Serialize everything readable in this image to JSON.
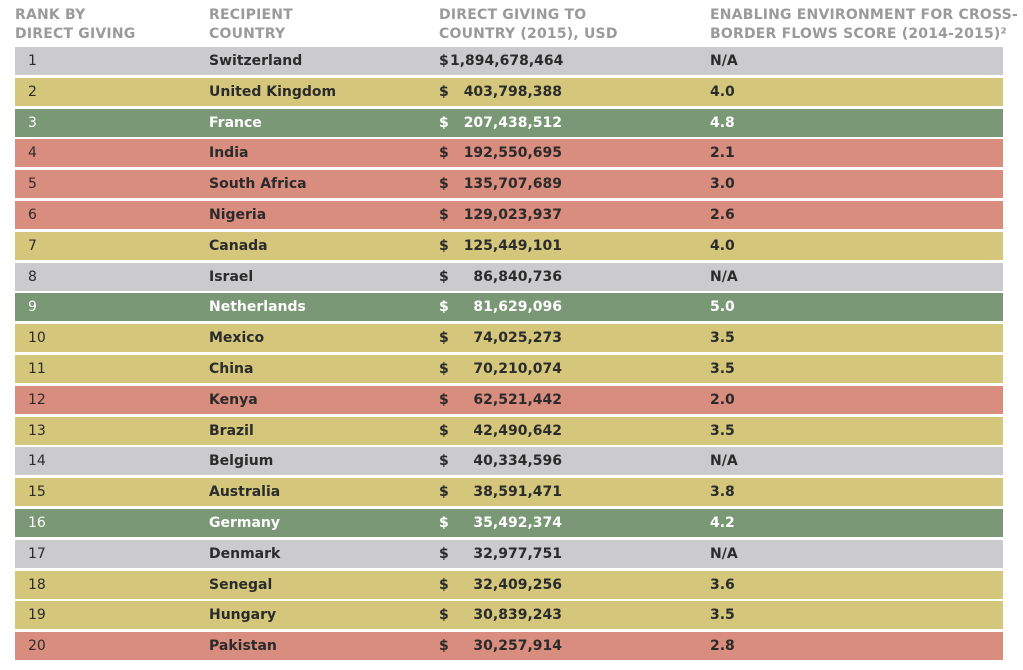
{
  "headers": {
    "rank": "RANK BY\nDIRECT GIVING",
    "country": "RECIPIENT\nCOUNTRY",
    "giving": "DIRECT GIVING TO\nCOUNTRY (2015), USD",
    "score": "ENABLING ENVIRONMENT FOR CROSS-\nBORDER FLOWS SCORE (2014-2015)²"
  },
  "currency_symbol": "$",
  "colors": {
    "grey": "#cbcbcd",
    "yellow": "#d4c77b",
    "green": "#7a9876",
    "red": "#d98d7e"
  },
  "rows": [
    {
      "rank": "1",
      "country": "Switzerland",
      "amount": "1,894,678,464",
      "score": "N/A",
      "color": "grey"
    },
    {
      "rank": "2",
      "country": "United Kingdom",
      "amount": "403,798,388",
      "score": "4.0",
      "color": "yellow"
    },
    {
      "rank": "3",
      "country": "France",
      "amount": "207,438,512",
      "score": "4.8",
      "color": "green"
    },
    {
      "rank": "4",
      "country": "India",
      "amount": "192,550,695",
      "score": "2.1",
      "color": "red"
    },
    {
      "rank": "5",
      "country": "South Africa",
      "amount": "135,707,689",
      "score": "3.0",
      "color": "red"
    },
    {
      "rank": "6",
      "country": "Nigeria",
      "amount": "129,023,937",
      "score": "2.6",
      "color": "red"
    },
    {
      "rank": "7",
      "country": "Canada",
      "amount": "125,449,101",
      "score": "4.0",
      "color": "yellow"
    },
    {
      "rank": "8",
      "country": "Israel",
      "amount": "86,840,736",
      "score": "N/A",
      "color": "grey"
    },
    {
      "rank": "9",
      "country": "Netherlands",
      "amount": "81,629,096",
      "score": "5.0",
      "color": "green"
    },
    {
      "rank": "10",
      "country": "Mexico",
      "amount": "74,025,273",
      "score": "3.5",
      "color": "yellow"
    },
    {
      "rank": "11",
      "country": "China",
      "amount": "70,210,074",
      "score": "3.5",
      "color": "yellow"
    },
    {
      "rank": "12",
      "country": "Kenya",
      "amount": "62,521,442",
      "score": "2.0",
      "color": "red"
    },
    {
      "rank": "13",
      "country": "Brazil",
      "amount": "42,490,642",
      "score": "3.5",
      "color": "yellow"
    },
    {
      "rank": "14",
      "country": "Belgium",
      "amount": "40,334,596",
      "score": "N/A",
      "color": "grey"
    },
    {
      "rank": "15",
      "country": "Australia",
      "amount": "38,591,471",
      "score": "3.8",
      "color": "yellow"
    },
    {
      "rank": "16",
      "country": "Germany",
      "amount": "35,492,374",
      "score": "4.2",
      "color": "green"
    },
    {
      "rank": "17",
      "country": "Denmark",
      "amount": "32,977,751",
      "score": "N/A",
      "color": "grey"
    },
    {
      "rank": "18",
      "country": "Senegal",
      "amount": "32,409,256",
      "score": "3.6",
      "color": "yellow"
    },
    {
      "rank": "19",
      "country": "Hungary",
      "amount": "30,839,243",
      "score": "3.5",
      "color": "yellow"
    },
    {
      "rank": "20",
      "country": "Pakistan",
      "amount": "30,257,914",
      "score": "2.8",
      "color": "red"
    }
  ]
}
